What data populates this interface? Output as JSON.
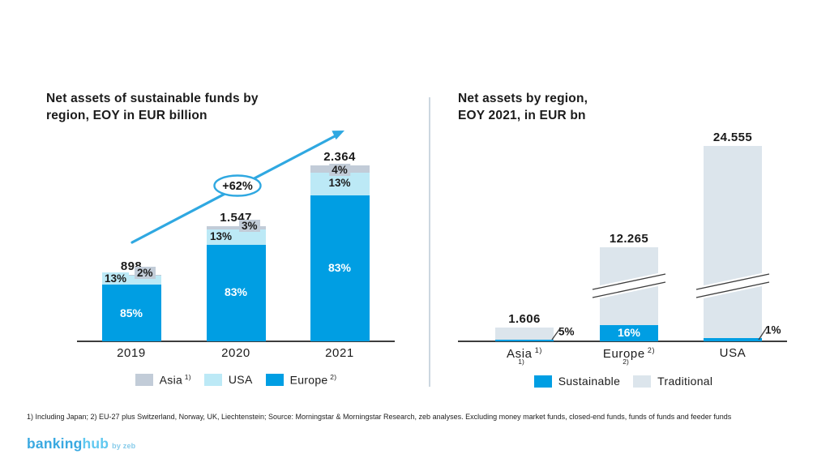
{
  "page": {
    "footnote": "1) Including Japan; 2) EU-27 plus Switzerland, Norway, UK, Liechtenstein; Source: Morningstar & Morningstar Research, zeb analyses. Excluding money market funds, closed-end funds, funds of funds and feeder funds",
    "logo": {
      "part1": "banking",
      "part2": "hub",
      "byline": "by zeb"
    }
  },
  "colors": {
    "europe_blue": "#009EE3",
    "usa_cyan": "#BCE9F6",
    "asia_gray": "#C2CCD8",
    "traditional": "#DCE5EC",
    "arrow_blue": "#2FA8E1",
    "axis": "#3D3D3D",
    "divider": "#CCD7E0",
    "logo_banking": "#3AA9E1",
    "logo_hub": "#5FC8F0"
  },
  "chart_data": [
    {
      "type": "bar",
      "stacked": true,
      "title": "Net assets of sustainable funds by region, EOY in EUR billion",
      "title_lines": [
        "Net assets of sustainable funds by",
        "region, EOY in EUR billion"
      ],
      "categories": [
        "2019",
        "2020",
        "2021"
      ],
      "totals": [
        898,
        1547,
        2364
      ],
      "total_labels": [
        "898",
        "1.547",
        "2.364"
      ],
      "unit": "EUR billion",
      "series": [
        {
          "name": "Asia",
          "sup": "1)",
          "color_key": "asia_gray",
          "pct": [
            2,
            3,
            4
          ]
        },
        {
          "name": "USA",
          "sup": "",
          "color_key": "usa_cyan",
          "pct": [
            13,
            13,
            13
          ]
        },
        {
          "name": "Europe",
          "sup": "2)",
          "color_key": "europe_blue",
          "pct": [
            85,
            83,
            83
          ]
        }
      ],
      "growth_annotation": "+62%",
      "legend_position": "bottom",
      "grid": false
    },
    {
      "type": "bar",
      "stacked": true,
      "title": "Net assets by region, EOY 2021, in EUR bn",
      "title_lines": [
        "Net assets by region,",
        "EOY 2021, in EUR bn"
      ],
      "categories": [
        "Asia",
        "Europe",
        "USA"
      ],
      "category_sups": [
        "1)",
        "2)",
        ""
      ],
      "totals": [
        1606,
        12265,
        24555
      ],
      "total_labels": [
        "1.606",
        "12.265",
        "24.555"
      ],
      "unit": "EUR bn",
      "series": [
        {
          "name": "Sustainable",
          "color_key": "europe_blue",
          "pct": [
            5,
            16,
            1
          ]
        },
        {
          "name": "Traditional",
          "color_key": "traditional",
          "pct": [
            95,
            84,
            99
          ]
        }
      ],
      "sustainable_labels": [
        "5%",
        "16%",
        "1%"
      ],
      "axis_break": [
        false,
        true,
        true
      ],
      "legend_position": "bottom",
      "grid": false
    }
  ]
}
